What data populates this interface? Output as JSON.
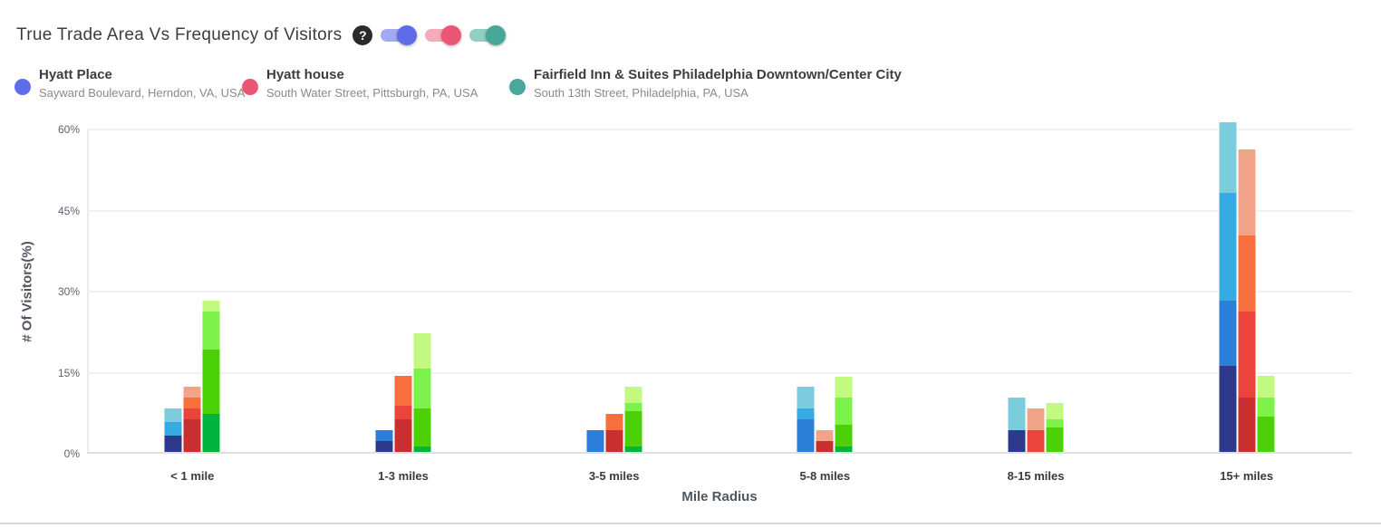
{
  "header": {
    "title": "True Trade Area Vs Frequency of Visitors",
    "help_label": "?",
    "toggles": [
      {
        "name": "hyatt-place-toggle",
        "on": true,
        "track_color": "#a3abf0",
        "thumb_color": "#5f6ce9"
      },
      {
        "name": "hyatt-house-toggle",
        "on": true,
        "track_color": "#f4abbb",
        "thumb_color": "#ea5674"
      },
      {
        "name": "fairfield-toggle",
        "on": true,
        "track_color": "#93cec5",
        "thumb_color": "#49a79a"
      }
    ]
  },
  "legend": [
    {
      "name": "Hyatt Place",
      "address": "Sayward Boulevard, Herndon, VA, USA",
      "color": "#5f6ce9"
    },
    {
      "name": "Hyatt house",
      "address": "South Water Street, Pittsburgh, PA, USA",
      "color": "#ea5674"
    },
    {
      "name": "Fairfield Inn & Suites Philadelphia Downtown/Center City",
      "address": "South 13th Street, Philadelphia, PA, USA",
      "color": "#49a79a"
    }
  ],
  "chart_data": {
    "type": "bar",
    "stacked": true,
    "title": "True Trade Area Vs Frequency of Visitors",
    "xlabel": "Mile Radius",
    "ylabel": "# Of Visitors(%)",
    "ylim": [
      0,
      60
    ],
    "ytick_values": [
      0,
      15,
      30,
      45,
      60
    ],
    "ytick_labels": [
      "0%",
      "15%",
      "30%",
      "45%",
      "60%"
    ],
    "grid": true,
    "legend_position": "top",
    "categories": [
      "< 1 mile",
      "1-3 miles",
      "3-5 miles",
      "5-8 miles",
      "8-15 miles",
      "15+ miles"
    ],
    "note": "Each hotel renders one stacked bar per category; stack segments are frequency buckets shaded dark (bottom) to light (top). Values are % of visitors.",
    "series": [
      {
        "name": "Hyatt Place",
        "shade_colors": [
          "#2d3a8c",
          "#2b7fd9",
          "#35aae3",
          "#7bccdd"
        ],
        "stacks": [
          [
            3,
            0,
            2.5,
            2.5
          ],
          [
            2,
            2,
            0,
            0
          ],
          [
            0,
            4,
            0,
            0
          ],
          [
            0,
            6,
            2,
            4
          ],
          [
            4,
            0,
            0,
            6
          ],
          [
            16,
            12,
            20,
            13
          ]
        ],
        "totals": [
          8,
          4,
          4,
          12,
          10,
          61
        ]
      },
      {
        "name": "Hyatt house",
        "shade_colors": [
          "#c92f2f",
          "#ea443c",
          "#f8703d",
          "#f2a48b"
        ],
        "stacks": [
          [
            6,
            2,
            2,
            2
          ],
          [
            6,
            2.5,
            5.5,
            0
          ],
          [
            4,
            0,
            3,
            0
          ],
          [
            2,
            0,
            0,
            2
          ],
          [
            0,
            4,
            0,
            4
          ],
          [
            10,
            16,
            14,
            16
          ]
        ],
        "totals": [
          12,
          14,
          7,
          4,
          8,
          56
        ]
      },
      {
        "name": "Fairfield Inn & Suites Philadelphia Downtown/Center City",
        "shade_colors": [
          "#00b43e",
          "#4cd007",
          "#7df24b",
          "#c1fa7e"
        ],
        "stacks": [
          [
            7,
            12,
            7,
            2
          ],
          [
            1,
            7,
            7.5,
            6.5
          ],
          [
            1,
            6.5,
            1.5,
            3
          ],
          [
            1,
            4,
            5,
            4
          ],
          [
            0,
            4.5,
            1.5,
            3
          ],
          [
            0,
            6.5,
            3.5,
            4
          ]
        ],
        "totals": [
          28,
          22,
          12,
          14,
          9,
          14
        ]
      }
    ]
  }
}
